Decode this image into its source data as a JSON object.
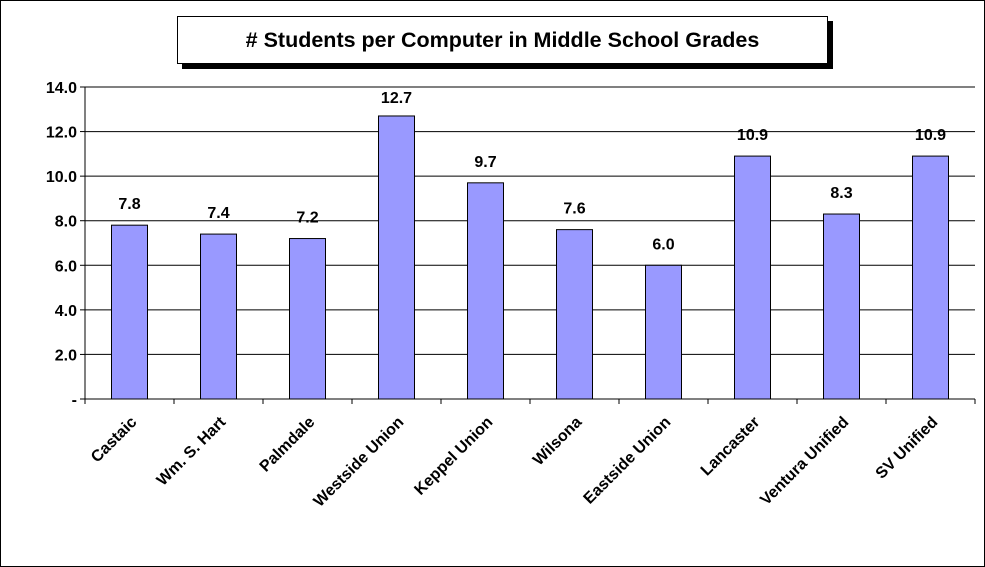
{
  "chart_data": {
    "type": "bar",
    "title": "# Students per Computer in Middle School Grades",
    "categories": [
      "Castaic",
      "Wm. S. Hart",
      "Palmdale",
      "Westside Union",
      "Keppel Union",
      "Wilsona",
      "Eastside Union",
      "Lancaster",
      "Ventura Unified",
      "SV Unified"
    ],
    "values": [
      7.8,
      7.4,
      7.2,
      12.7,
      9.7,
      7.6,
      6.0,
      10.9,
      8.3,
      10.9
    ],
    "data_labels": [
      "7.8",
      "7.4",
      "7.2",
      "12.7",
      "9.7",
      "7.6",
      "6.0",
      "10.9",
      "8.3",
      "10.9"
    ],
    "y_ticks": [
      0,
      2,
      4,
      6,
      8,
      10,
      12,
      14
    ],
    "y_tick_labels": [
      "-",
      "2.0",
      "4.0",
      "6.0",
      "8.0",
      "10.0",
      "12.0",
      "14.0"
    ],
    "ylim": [
      0,
      14
    ],
    "grid": true,
    "bar_color": "#9999ff",
    "xlabel": "",
    "ylabel": ""
  }
}
